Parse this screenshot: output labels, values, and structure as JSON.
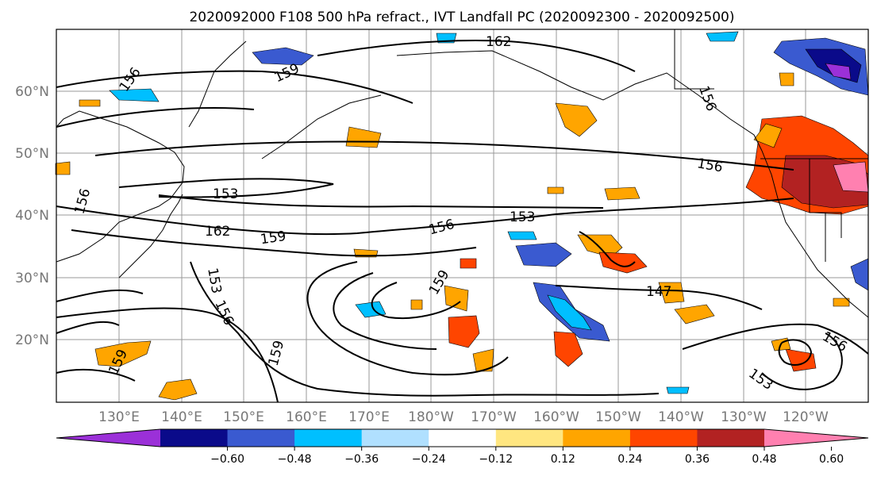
{
  "title": "2020092000 F108 500 hPa refract., IVT Landfall PC (2020092300 - 2020092500)",
  "lat_labels": [
    "20°N",
    "30°N",
    "40°N",
    "50°N",
    "60°N"
  ],
  "lon_labels": [
    "130°E",
    "140°E",
    "150°E",
    "160°E",
    "170°E",
    "180°W",
    "170°W",
    "160°W",
    "150°W",
    "140°W",
    "130°W",
    "120°W"
  ],
  "contour_labels": [
    "162",
    "159",
    "156",
    "156",
    "153",
    "162",
    "159",
    "156",
    "153",
    "156",
    "156",
    "147",
    "153",
    "156",
    "159",
    "156",
    "159",
    "153",
    "159"
  ],
  "colorbar": {
    "ticks": [
      "−0.60",
      "−0.48",
      "−0.36",
      "−0.24",
      "−0.12",
      "0.12",
      "0.24",
      "0.36",
      "0.48",
      "0.60"
    ],
    "colors": [
      "#9b30d8",
      "#0a0a8a",
      "#3a5ad0",
      "#00bfff",
      "#b0e0ff",
      "#ffffff",
      "#ffe680",
      "#ffa500",
      "#ff4500",
      "#b22222",
      "#ff80b0"
    ]
  },
  "colors": {
    "neg_strong": "#3a5ad0",
    "neg_mid": "#00bfff",
    "neg_weak": "#b0e0ff",
    "pos_weak": "#ffe680",
    "pos_mid": "#ffa500",
    "pos_strong": "#ff4500",
    "pos_very_strong": "#b22222",
    "pos_extreme": "#ff80b0",
    "neg_extreme": "#0a0a8a"
  }
}
